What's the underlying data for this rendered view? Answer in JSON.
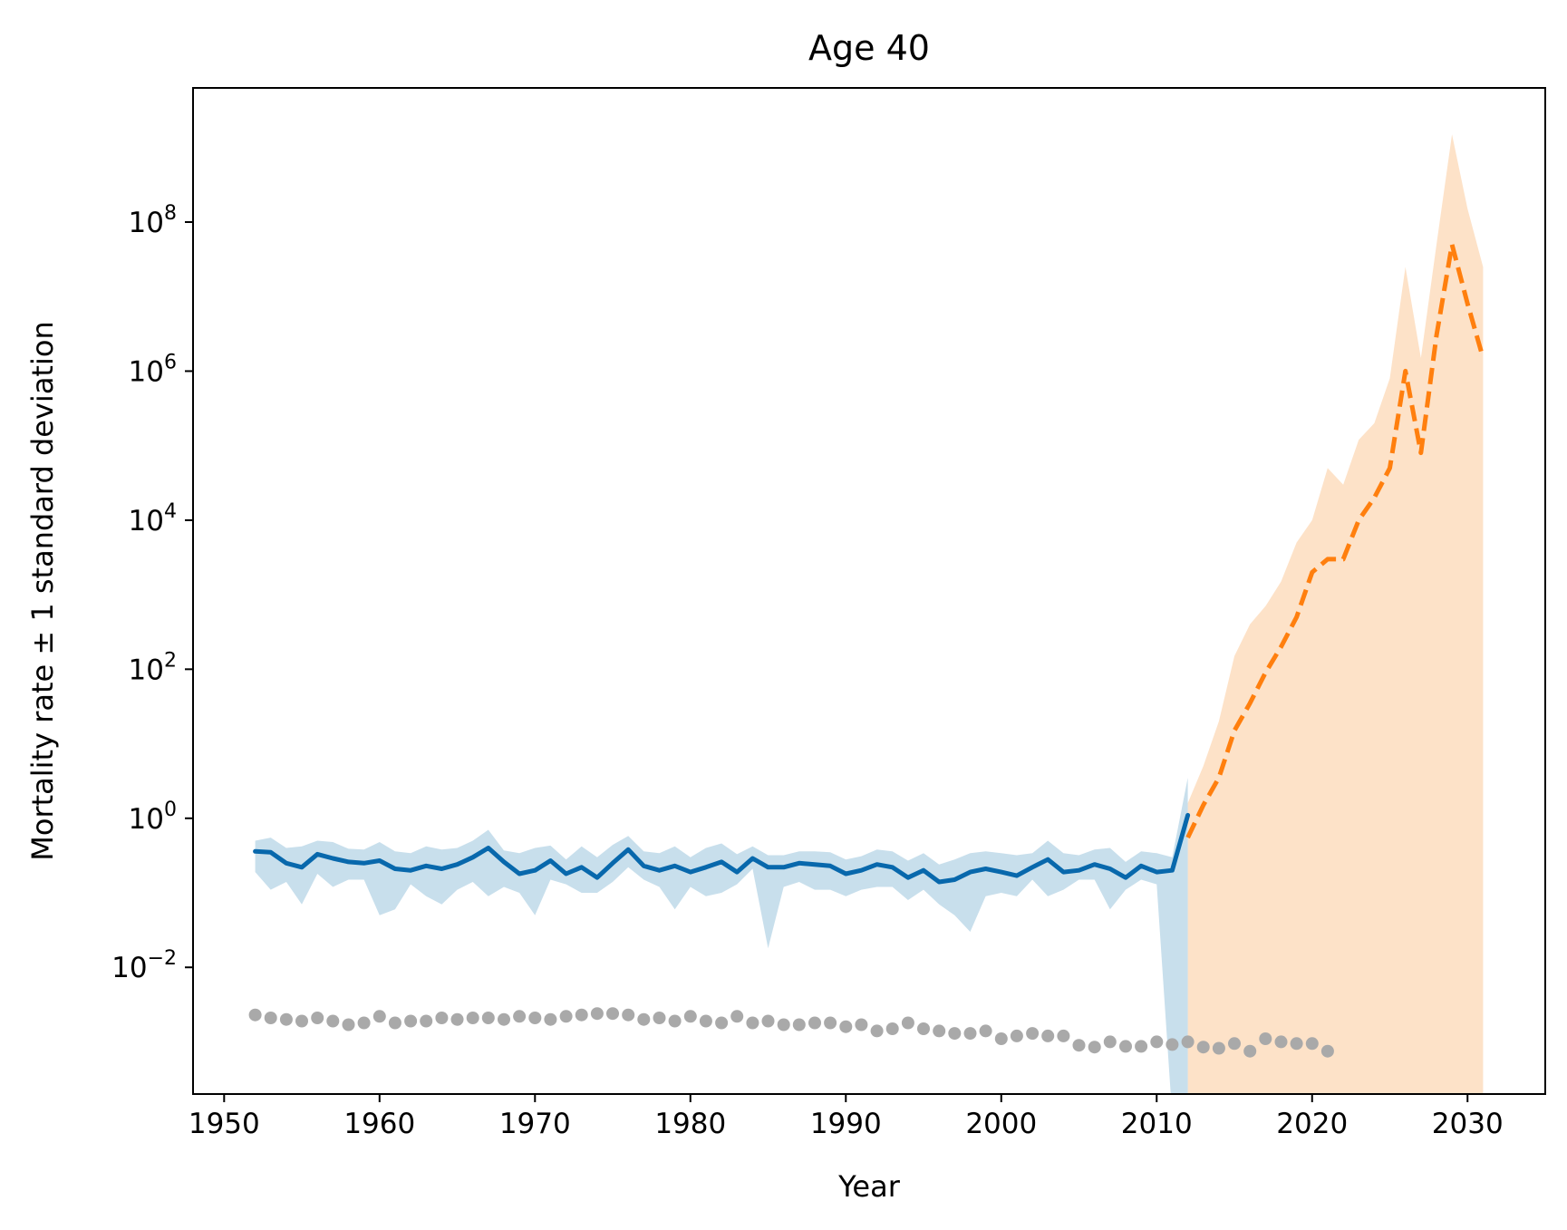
{
  "chart_data": {
    "type": "line",
    "title": "Age 40",
    "xlabel": "Year",
    "ylabel": "Mortality rate ± 1 standard deviation",
    "xlim": [
      1948,
      2035
    ],
    "ylim_log10": [
      -3.7,
      9.8
    ],
    "yscale": "log",
    "x_ticks": [
      1950,
      1960,
      1970,
      1980,
      1990,
      2000,
      2010,
      2020,
      2030
    ],
    "y_ticks": [
      {
        "base": "10",
        "exp": "8",
        "value": 100000000.0
      },
      {
        "base": "10",
        "exp": "6",
        "value": 1000000.0
      },
      {
        "base": "10",
        "exp": "4",
        "value": 10000.0
      },
      {
        "base": "10",
        "exp": "2",
        "value": 100.0
      },
      {
        "base": "10",
        "exp": "0",
        "value": 1
      },
      {
        "base": "10",
        "exp": "−2",
        "value": 0.01
      }
    ],
    "grid": false,
    "colors": {
      "fit": "#0868ac",
      "fit_band": "#c8dfec",
      "forecast": "#ff7f0e",
      "forecast_band": "#fde2c8",
      "observed": "#a9a9a9"
    },
    "series": [
      {
        "role": "fitted",
        "style": "solid",
        "x": [
          1952,
          1953,
          1954,
          1955,
          1956,
          1957,
          1958,
          1959,
          1960,
          1961,
          1962,
          1963,
          1964,
          1965,
          1966,
          1967,
          1968,
          1969,
          1970,
          1971,
          1972,
          1973,
          1974,
          1975,
          1976,
          1977,
          1978,
          1979,
          1980,
          1981,
          1982,
          1983,
          1984,
          1985,
          1986,
          1987,
          1988,
          1989,
          1990,
          1991,
          1992,
          1993,
          1994,
          1995,
          1996,
          1997,
          1998,
          1999,
          2000,
          2001,
          2002,
          2003,
          2004,
          2005,
          2006,
          2007,
          2008,
          2009,
          2010,
          2011,
          2012
        ],
        "y": [
          0.36,
          0.35,
          0.25,
          0.22,
          0.33,
          0.29,
          0.26,
          0.25,
          0.27,
          0.21,
          0.2,
          0.23,
          0.21,
          0.24,
          0.3,
          0.4,
          0.26,
          0.18,
          0.2,
          0.27,
          0.18,
          0.22,
          0.16,
          0.25,
          0.38,
          0.23,
          0.2,
          0.23,
          0.19,
          0.22,
          0.26,
          0.19,
          0.29,
          0.22,
          0.22,
          0.25,
          0.24,
          0.23,
          0.18,
          0.2,
          0.24,
          0.22,
          0.16,
          0.2,
          0.14,
          0.15,
          0.19,
          0.21,
          0.19,
          0.17,
          0.22,
          0.28,
          0.19,
          0.2,
          0.24,
          0.21,
          0.16,
          0.23,
          0.19,
          0.2,
          1.1
        ],
        "lower": [
          0.19,
          0.11,
          0.14,
          0.07,
          0.18,
          0.12,
          0.15,
          0.15,
          0.05,
          0.06,
          0.13,
          0.09,
          0.07,
          0.11,
          0.14,
          0.09,
          0.12,
          0.1,
          0.05,
          0.15,
          0.13,
          0.1,
          0.1,
          0.14,
          0.22,
          0.15,
          0.12,
          0.06,
          0.12,
          0.09,
          0.1,
          0.13,
          0.21,
          0.018,
          0.12,
          0.14,
          0.11,
          0.11,
          0.09,
          0.11,
          0.12,
          0.12,
          0.08,
          0.11,
          0.07,
          0.05,
          0.03,
          0.09,
          0.1,
          0.09,
          0.15,
          0.09,
          0.11,
          0.15,
          0.15,
          0.06,
          0.11,
          0.15,
          0.13,
          0.0001,
          0.0001
        ],
        "upper": [
          0.5,
          0.55,
          0.4,
          0.42,
          0.5,
          0.48,
          0.39,
          0.38,
          0.48,
          0.36,
          0.34,
          0.42,
          0.38,
          0.4,
          0.5,
          0.7,
          0.37,
          0.34,
          0.4,
          0.43,
          0.28,
          0.42,
          0.3,
          0.44,
          0.58,
          0.36,
          0.34,
          0.42,
          0.3,
          0.4,
          0.46,
          0.33,
          0.42,
          0.32,
          0.32,
          0.36,
          0.36,
          0.35,
          0.28,
          0.31,
          0.38,
          0.36,
          0.27,
          0.34,
          0.24,
          0.28,
          0.34,
          0.36,
          0.34,
          0.32,
          0.34,
          0.5,
          0.34,
          0.32,
          0.38,
          0.4,
          0.26,
          0.36,
          0.34,
          0.3,
          3.5
        ]
      },
      {
        "role": "forecast",
        "style": "dashed",
        "x": [
          2012,
          2013,
          2014,
          2015,
          2016,
          2017,
          2018,
          2019,
          2020,
          2021,
          2022,
          2023,
          2024,
          2025,
          2026,
          2027,
          2028,
          2029,
          2030,
          2031
        ],
        "y": [
          0.55,
          1.5,
          3.5,
          15,
          35,
          90,
          200,
          500,
          2000,
          3000,
          3000,
          10000,
          20000,
          50000,
          1000000,
          80000,
          3000000,
          50000000,
          8000000,
          1500000
        ],
        "lower": [
          0.0001,
          0.0001,
          0.0001,
          0.0001,
          0.0001,
          0.0001,
          0.0001,
          0.0001,
          0.0001,
          0.0001,
          0.0001,
          0.0001,
          0.0001,
          0.0001,
          0.0001,
          0.0001,
          0.0001,
          0.0001,
          0.0001,
          0.0001
        ],
        "upper": [
          1.6,
          5,
          20,
          150,
          400,
          700,
          1500,
          5000,
          10000,
          50000,
          30000,
          120000,
          200000,
          800000,
          25000000,
          1500000,
          50000000,
          1500000000,
          150000000,
          25000000
        ]
      },
      {
        "role": "observed",
        "style": "markers",
        "x": [
          1952,
          1953,
          1954,
          1955,
          1956,
          1957,
          1958,
          1959,
          1960,
          1961,
          1962,
          1963,
          1964,
          1965,
          1966,
          1967,
          1968,
          1969,
          1970,
          1971,
          1972,
          1973,
          1974,
          1975,
          1976,
          1977,
          1978,
          1979,
          1980,
          1981,
          1982,
          1983,
          1984,
          1985,
          1986,
          1987,
          1988,
          1989,
          1990,
          1991,
          1992,
          1993,
          1994,
          1995,
          1996,
          1997,
          1998,
          1999,
          2000,
          2001,
          2002,
          2003,
          2004,
          2005,
          2006,
          2007,
          2008,
          2009,
          2010,
          2011,
          2012,
          2013,
          2014,
          2015,
          2016,
          2017,
          2018,
          2019,
          2020,
          2021
        ],
        "y": [
          0.0023,
          0.0021,
          0.002,
          0.0019,
          0.0021,
          0.0019,
          0.0017,
          0.0018,
          0.0022,
          0.0018,
          0.0019,
          0.0019,
          0.0021,
          0.002,
          0.0021,
          0.0021,
          0.002,
          0.0022,
          0.0021,
          0.002,
          0.0022,
          0.0023,
          0.0024,
          0.0024,
          0.0023,
          0.002,
          0.0021,
          0.0019,
          0.0022,
          0.0019,
          0.0018,
          0.0022,
          0.0018,
          0.0019,
          0.0017,
          0.0017,
          0.0018,
          0.0018,
          0.0016,
          0.0017,
          0.0014,
          0.0015,
          0.0018,
          0.0015,
          0.0014,
          0.0013,
          0.0013,
          0.0014,
          0.0011,
          0.0012,
          0.0013,
          0.0012,
          0.0012,
          0.0009,
          0.00085,
          0.001,
          0.00087,
          0.00087,
          0.001,
          0.00092,
          0.001,
          0.00085,
          0.00082,
          0.00095,
          0.00075,
          0.0011,
          0.001,
          0.00095,
          0.00095,
          0.00075
        ]
      }
    ]
  }
}
